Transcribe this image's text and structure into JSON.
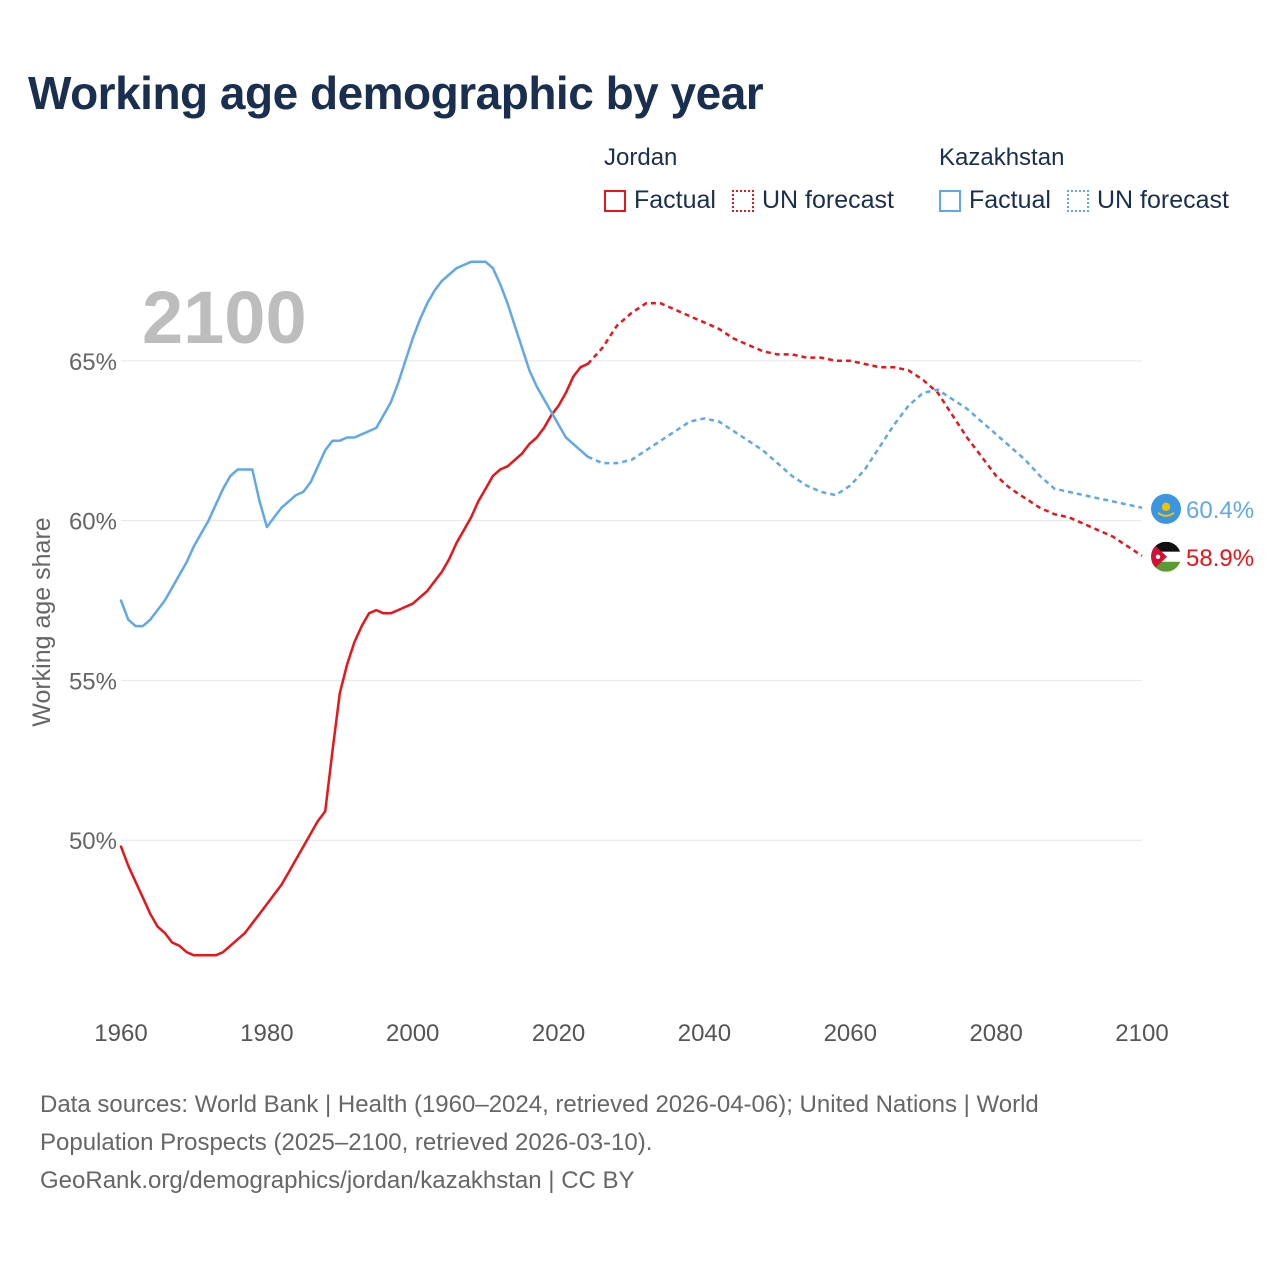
{
  "title": "Working age demographic by year",
  "legend": {
    "groups": [
      {
        "name": "Jordan",
        "color": "#e8151b",
        "factual_label": "Factual",
        "forecast_label": "UN forecast"
      },
      {
        "name": "Kazakhstan",
        "color": "#61a8e8",
        "factual_label": "Factual",
        "forecast_label": "UN forecast"
      }
    ]
  },
  "year_display": "2100",
  "sources": {
    "line1": "Data sources: World Bank | Health (1960–2024, retrieved 2026-04-06); United Nations | World",
    "line2": "Population Prospects (2025–2100, retrieved 2026-03-10).",
    "line3": "GeoRank.org/demographics/jordan/kazakhstan | CC BY"
  },
  "chart_data": {
    "type": "line",
    "title": "Working age demographic by year",
    "xlabel": "",
    "ylabel": "Working age share",
    "xlim": [
      1960,
      2100
    ],
    "ylim": [
      45,
      69
    ],
    "x_ticks": [
      1960,
      1980,
      2000,
      2020,
      2040,
      2060,
      2080,
      2100
    ],
    "y_ticks": [
      50,
      55,
      60,
      65
    ],
    "y_tick_labels": [
      "50%",
      "55%",
      "60%",
      "65%"
    ],
    "grid": true,
    "series": [
      {
        "name": "Jordan",
        "color": "#e8151b",
        "end_label": "58.9%",
        "flag_icon": "jordan-flag-icon",
        "factual": {
          "x": [
            1960,
            1961,
            1962,
            1963,
            1964,
            1965,
            1966,
            1967,
            1968,
            1969,
            1970,
            1971,
            1972,
            1973,
            1974,
            1975,
            1976,
            1977,
            1978,
            1979,
            1980,
            1981,
            1982,
            1983,
            1984,
            1985,
            1986,
            1987,
            1988,
            1989,
            1990,
            1991,
            1992,
            1993,
            1994,
            1995,
            1996,
            1997,
            1998,
            1999,
            2000,
            2001,
            2002,
            2003,
            2004,
            2005,
            2006,
            2007,
            2008,
            2009,
            2010,
            2011,
            2012,
            2013,
            2014,
            2015,
            2016,
            2017,
            2018,
            2019,
            2020,
            2021,
            2022,
            2023,
            2024
          ],
          "y": [
            49.8,
            49.2,
            48.7,
            48.2,
            47.7,
            47.3,
            47.1,
            46.8,
            46.7,
            46.5,
            46.4,
            46.4,
            46.4,
            46.4,
            46.5,
            46.7,
            46.9,
            47.1,
            47.4,
            47.7,
            48.0,
            48.3,
            48.6,
            49.0,
            49.4,
            49.8,
            50.2,
            50.6,
            50.9,
            52.8,
            54.6,
            55.5,
            56.2,
            56.7,
            57.1,
            57.2,
            57.1,
            57.1,
            57.2,
            57.3,
            57.4,
            57.6,
            57.8,
            58.1,
            58.4,
            58.8,
            59.3,
            59.7,
            60.1,
            60.6,
            61.0,
            61.4,
            61.6,
            61.7,
            61.9,
            62.1,
            62.4,
            62.6,
            62.9,
            63.3,
            63.6,
            64.0,
            64.5,
            64.8,
            64.9
          ]
        },
        "forecast": {
          "x": [
            2024,
            2026,
            2028,
            2030,
            2032,
            2034,
            2036,
            2038,
            2040,
            2042,
            2044,
            2046,
            2048,
            2050,
            2052,
            2054,
            2056,
            2058,
            2060,
            2062,
            2064,
            2066,
            2068,
            2070,
            2072,
            2074,
            2076,
            2078,
            2080,
            2082,
            2084,
            2086,
            2088,
            2090,
            2092,
            2094,
            2096,
            2098,
            2100
          ],
          "y": [
            64.9,
            65.4,
            66.1,
            66.5,
            66.8,
            66.8,
            66.6,
            66.4,
            66.2,
            66.0,
            65.7,
            65.5,
            65.3,
            65.2,
            65.2,
            65.1,
            65.1,
            65.0,
            65.0,
            64.9,
            64.8,
            64.8,
            64.7,
            64.4,
            64.0,
            63.3,
            62.6,
            62.0,
            61.4,
            61.0,
            60.7,
            60.4,
            60.2,
            60.1,
            59.9,
            59.7,
            59.5,
            59.2,
            58.9
          ]
        }
      },
      {
        "name": "Kazakhstan",
        "color": "#61a8e8",
        "end_label": "60.4%",
        "flag_icon": "kazakhstan-flag-icon",
        "factual": {
          "x": [
            1960,
            1961,
            1962,
            1963,
            1964,
            1965,
            1966,
            1967,
            1968,
            1969,
            1970,
            1971,
            1972,
            1973,
            1974,
            1975,
            1976,
            1977,
            1978,
            1979,
            1980,
            1981,
            1982,
            1983,
            1984,
            1985,
            1986,
            1987,
            1988,
            1989,
            1990,
            1991,
            1992,
            1993,
            1994,
            1995,
            1996,
            1997,
            1998,
            1999,
            2000,
            2001,
            2002,
            2003,
            2004,
            2005,
            2006,
            2007,
            2008,
            2009,
            2010,
            2011,
            2012,
            2013,
            2014,
            2015,
            2016,
            2017,
            2018,
            2019,
            2020,
            2021,
            2022,
            2023,
            2024
          ],
          "y": [
            57.5,
            56.9,
            56.7,
            56.7,
            56.9,
            57.2,
            57.5,
            57.9,
            58.3,
            58.7,
            59.2,
            59.6,
            60.0,
            60.5,
            61.0,
            61.4,
            61.6,
            61.6,
            61.6,
            60.6,
            59.8,
            60.1,
            60.4,
            60.6,
            60.8,
            60.9,
            61.2,
            61.7,
            62.2,
            62.5,
            62.5,
            62.6,
            62.6,
            62.7,
            62.8,
            62.9,
            63.3,
            63.7,
            64.3,
            65.0,
            65.7,
            66.3,
            66.8,
            67.2,
            67.5,
            67.7,
            67.9,
            68.0,
            68.1,
            68.1,
            68.1,
            67.9,
            67.4,
            66.8,
            66.1,
            65.4,
            64.7,
            64.2,
            63.8,
            63.4,
            63.0,
            62.6,
            62.4,
            62.2,
            62.0
          ]
        },
        "forecast": {
          "x": [
            2024,
            2026,
            2028,
            2030,
            2032,
            2034,
            2036,
            2038,
            2040,
            2042,
            2044,
            2046,
            2048,
            2050,
            2052,
            2054,
            2056,
            2058,
            2060,
            2062,
            2064,
            2066,
            2068,
            2070,
            2072,
            2074,
            2076,
            2078,
            2080,
            2082,
            2084,
            2086,
            2088,
            2090,
            2092,
            2094,
            2096,
            2098,
            2100
          ],
          "y": [
            62.0,
            61.8,
            61.8,
            61.9,
            62.2,
            62.5,
            62.8,
            63.1,
            63.2,
            63.1,
            62.8,
            62.5,
            62.2,
            61.8,
            61.4,
            61.1,
            60.9,
            60.8,
            61.1,
            61.6,
            62.3,
            63.0,
            63.6,
            64.0,
            64.1,
            63.8,
            63.5,
            63.1,
            62.7,
            62.3,
            61.9,
            61.4,
            61.0,
            60.9,
            60.8,
            60.7,
            60.6,
            60.5,
            60.4
          ]
        }
      }
    ]
  }
}
